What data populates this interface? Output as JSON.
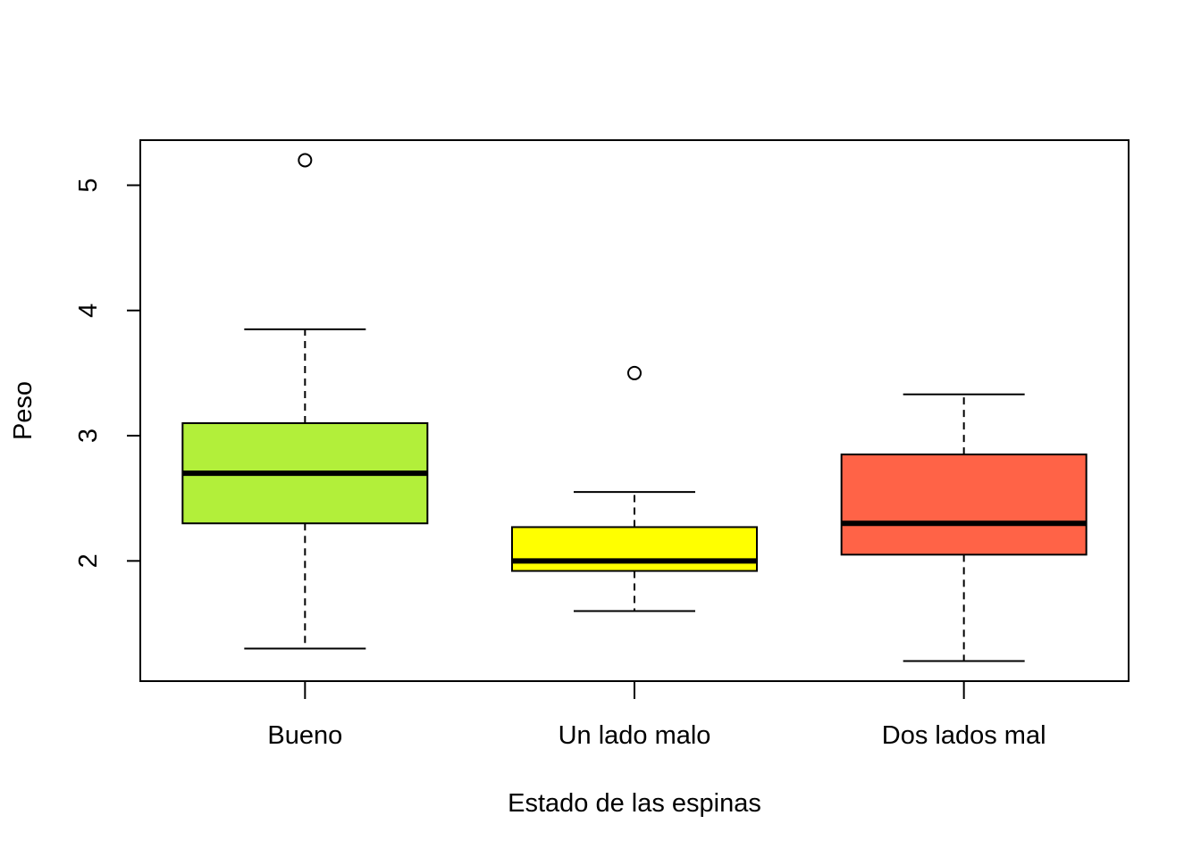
{
  "chart_data": {
    "type": "box",
    "xlabel": "Estado de las espinas",
    "ylabel": "Peso",
    "ylim": [
      1.04,
      5.36
    ],
    "y_ticks": [
      2,
      3,
      4,
      5
    ],
    "y_tick_labels": [
      "2",
      "3",
      "4",
      "5"
    ],
    "categories": [
      "Bueno",
      "Un lado malo",
      "Dos lados mal"
    ],
    "colors": [
      "#b2ef3a",
      "#ffff00",
      "#ff6347"
    ],
    "boxes": [
      {
        "category": "Bueno",
        "whisker_low": 1.3,
        "q1": 2.3,
        "median": 2.7,
        "q3": 3.1,
        "whisker_high": 3.85,
        "outliers": [
          5.2
        ]
      },
      {
        "category": "Un lado malo",
        "whisker_low": 1.6,
        "q1": 1.92,
        "median": 2.0,
        "q3": 2.27,
        "whisker_high": 2.55,
        "outliers": [
          3.5
        ]
      },
      {
        "category": "Dos lados mal",
        "whisker_low": 1.2,
        "q1": 2.05,
        "median": 2.3,
        "q3": 2.85,
        "whisker_high": 3.33,
        "outliers": []
      }
    ],
    "grid": false,
    "legend": false
  }
}
